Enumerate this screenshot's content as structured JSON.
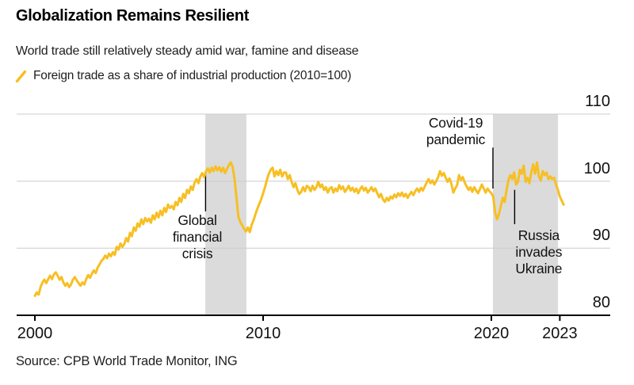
{
  "title": "Globalization Remains Resilient",
  "subtitle": "World trade still relatively steady amid war, famine and disease",
  "legend": {
    "label": "Foreign trade as a share of industrial production (2010=100)",
    "marker": "yellow-slash",
    "marker_color": "#F7BF23"
  },
  "source": "Source: CPB World Trade Monitor, ING",
  "colors": {
    "line": "#F7BF23",
    "band": "#DBDBDB",
    "gridline": "#CCCCCC",
    "axis": "#000000",
    "text": "#111111",
    "background": "#FFFFFF"
  },
  "chart_data": {
    "type": "line",
    "title": "Globalization Remains Resilient",
    "subtitle": "World trade still relatively steady amid war, famine and disease",
    "grid": "horizontal-only",
    "legend_position": "top-left",
    "series": [
      {
        "name": "Foreign trade as a share of industrial production (2010=100)",
        "color": "#F7BF23",
        "start_year": 2000,
        "points_per_year": 12,
        "end": "2023-03",
        "values": [
          82.9,
          83.4,
          83.1,
          84.2,
          84.9,
          85.3,
          84.8,
          85.4,
          85.9,
          85.4,
          86.1,
          86.4,
          85.9,
          85.3,
          85.7,
          84.9,
          84.4,
          84.8,
          84.2,
          84.6,
          85.3,
          85.7,
          85.2,
          84.8,
          84.4,
          84.9,
          84.6,
          85.4,
          86.0,
          85.6,
          86.2,
          86.7,
          86.3,
          87.1,
          87.6,
          88.1,
          88.4,
          88.9,
          88.5,
          89.2,
          88.8,
          89.4,
          89.0,
          90.2,
          89.8,
          90.7,
          90.2,
          90.6,
          91.5,
          91.0,
          92.3,
          91.8,
          93.1,
          92.6,
          93.7,
          93.2,
          94.3,
          93.6,
          94.5,
          94.0,
          94.4,
          93.8,
          94.9,
          94.3,
          95.3,
          94.6,
          95.6,
          94.9,
          96.0,
          95.4,
          96.5,
          96.0,
          96.3,
          95.8,
          96.9,
          96.4,
          97.5,
          96.9,
          98.1,
          97.5,
          98.7,
          98.2,
          99.2,
          98.7,
          99.8,
          100.3,
          99.7,
          100.7,
          101.2,
          100.6,
          101.5,
          101.9,
          101.3,
          102.0,
          101.5,
          102.2,
          101.6,
          102.1,
          101.4,
          102.0,
          101.2,
          101.8,
          102.4,
          102.8,
          102.1,
          100.3,
          97.5,
          94.7,
          93.9,
          93.4,
          92.9,
          92.5,
          93.1,
          92.4,
          93.5,
          94.2,
          95.1,
          95.9,
          96.6,
          97.3,
          98.2,
          99.1,
          100.2,
          101.1,
          101.7,
          102.0,
          100.7,
          101.5,
          100.9,
          101.7,
          100.7,
          101.3,
          101.3,
          100.3,
          100.9,
          99.9,
          99.1,
          99.7,
          98.7,
          98.1,
          98.4,
          99.1,
          98.5,
          99.3,
          99.1,
          98.5,
          99.3,
          98.7,
          99.1,
          99.9,
          99.1,
          99.5,
          98.7,
          99.1,
          98.3,
          98.9,
          99.1,
          98.3,
          98.9,
          98.5,
          99.4,
          98.8,
          99.2,
          98.4,
          98.8,
          99.3,
          98.6,
          99.0,
          98.4,
          98.9,
          98.2,
          98.8,
          99.2,
          98.6,
          99.0,
          98.3,
          98.7,
          99.1,
          98.5,
          98.9,
          98.2,
          97.6,
          98.1,
          97.3,
          96.9,
          97.5,
          97.1,
          97.7,
          97.4,
          98.0,
          97.6,
          98.2,
          97.8,
          98.3,
          97.7,
          98.1,
          97.5,
          98.0,
          98.4,
          97.9,
          98.5,
          98.9,
          98.4,
          99.0,
          98.6,
          99.2,
          99.8,
          100.3,
          99.7,
          100.1,
          99.5,
          100.0,
          100.6,
          101.5,
          100.8,
          101.2,
          100.5,
          99.9,
          100.4,
          99.6,
          98.3,
          98.9,
          99.4,
          100.9,
          100.2,
          100.6,
          99.8,
          99.2,
          98.7,
          99.1,
          98.4,
          99.1,
          98.6,
          98.2,
          98.8,
          99.5,
          98.9,
          98.3,
          98.9,
          98.5,
          98.2,
          97.7,
          95.3,
          94.3,
          95.1,
          96.3,
          97.5,
          96.9,
          98.7,
          100.2,
          100.9,
          100.3,
          101.3,
          99.5,
          99.9,
          101.7,
          101.1,
          102.3,
          99.9,
          100.5,
          99.7,
          101.3,
          102.5,
          101.1,
          102.8,
          100.7,
          100.1,
          101.5,
          100.9,
          101.3,
          100.3,
          100.7,
          100.3,
          100.5,
          99.5,
          98.7,
          97.7,
          97.1,
          96.5
        ]
      }
    ],
    "x_axis": {
      "ticks": [
        "2000",
        "2010",
        "2020",
        "2023"
      ],
      "tick_years": [
        2000,
        2010,
        2020,
        2023
      ],
      "range_years": [
        1999.2,
        2025.2
      ]
    },
    "y_axis": {
      "ticks": [
        "110",
        "100",
        "90",
        "80"
      ],
      "tick_values": [
        110,
        100,
        90,
        80
      ],
      "range": [
        80,
        110
      ],
      "side": "right",
      "baseline": 80
    },
    "shaded_bands": [
      {
        "name": "global-financial-crisis-recession",
        "from_year": 2007.47,
        "to_year": 2009.27
      },
      {
        "name": "pandemic-and-war-period",
        "from_year": 2020.07,
        "to_year": 2022.92
      }
    ],
    "annotations": [
      {
        "id": "gfc",
        "lines": [
          "Global",
          "financial",
          "crisis"
        ],
        "callout": {
          "year": 2007.48,
          "value_top": 101.1,
          "value_bottom": 95.5
        },
        "label_anchor": {
          "year": 2007.12,
          "value_top": 95.4
        }
      },
      {
        "id": "covid",
        "lines": [
          "Covid-19",
          "pandemic"
        ],
        "callout": {
          "year": 2020.07,
          "value_top": 105.0,
          "value_bottom": 98.9
        },
        "label_anchor": {
          "year": 2018.44,
          "value_top": 109.9
        }
      },
      {
        "id": "russia",
        "lines": [
          "Russia",
          "invades",
          "Ukraine"
        ],
        "callout": {
          "year": 2021.02,
          "value_top": 98.7,
          "value_bottom": 93.6
        },
        "label_anchor": {
          "year": 2022.08,
          "value_top": 93.1
        }
      }
    ]
  }
}
